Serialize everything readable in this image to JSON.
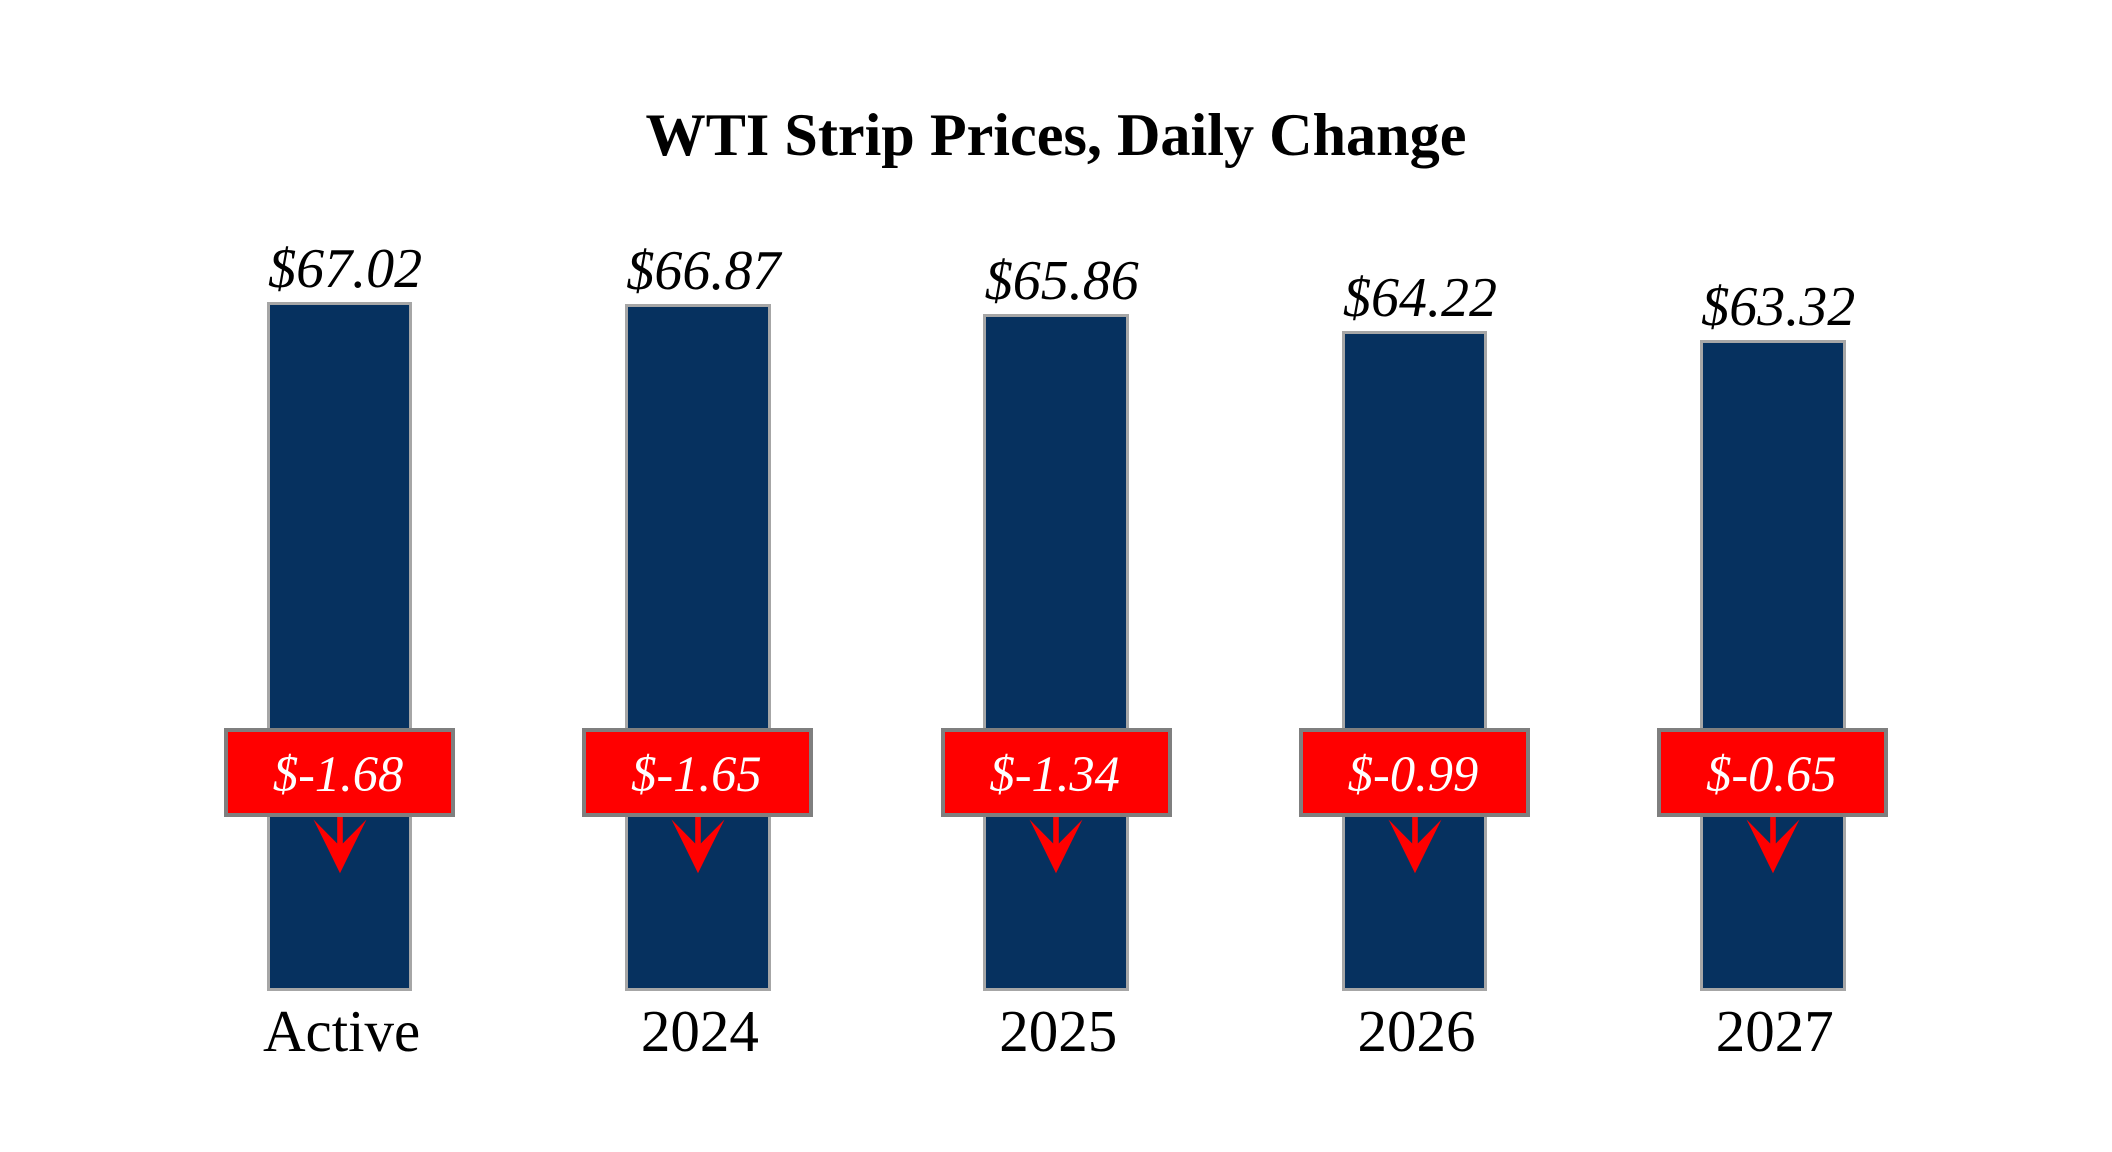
{
  "title": "WTI Strip Prices, Daily Change",
  "colors": {
    "background": "#ffffff",
    "title_text": "#000000",
    "bar_fill": "#06315f",
    "bar_border": "#a6a6a6",
    "value_label_text": "#000000",
    "change_box_fill": "#ff0000",
    "change_box_border": "#7f7f7f",
    "change_box_text": "#ffffff",
    "change_arrow": "#ff0000",
    "category_label_text": "#000000"
  },
  "chart_data": {
    "type": "bar",
    "title": "WTI Strip Prices, Daily Change",
    "xlabel": "",
    "ylabel": "",
    "categories": [
      "Active",
      "2024",
      "2025",
      "2026",
      "2027"
    ],
    "series": [
      {
        "name": "WTI strip price ($/bbl)",
        "values": [
          67.02,
          66.87,
          65.86,
          64.22,
          63.32
        ],
        "labels": [
          "$67.02",
          "$66.87",
          "$65.86",
          "$64.22",
          "$63.32"
        ]
      },
      {
        "name": "Daily change ($/bbl)",
        "values": [
          -1.68,
          -1.65,
          -1.34,
          -0.99,
          -0.65
        ],
        "labels": [
          "$-1.68",
          "$-1.65",
          "$-1.34",
          "$-0.99",
          "$-0.65"
        ]
      }
    ],
    "ylim": [
      0,
      67.02
    ],
    "grid": false,
    "legend": false,
    "axes_visible": false,
    "annotation_style": "red box with daily change value and red down arrow on each bar"
  }
}
